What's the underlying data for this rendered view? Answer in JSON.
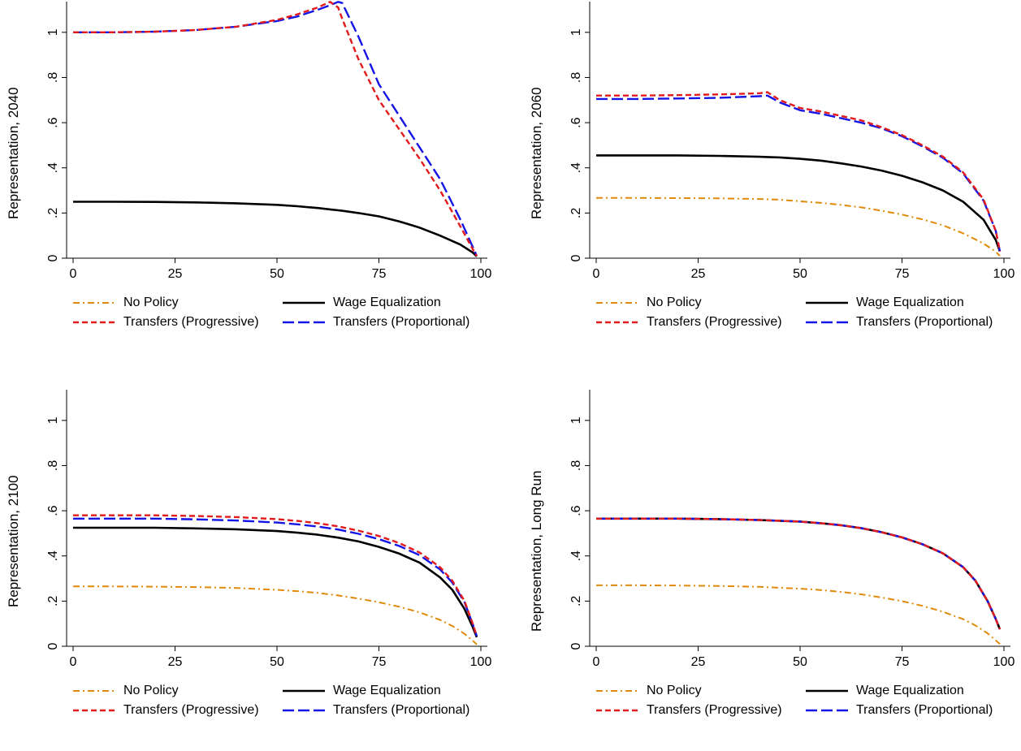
{
  "legend": [
    {
      "name": "No Policy",
      "color": "#E08A0B",
      "dash": "dashdot"
    },
    {
      "name": "Wage Equalization",
      "color": "#000000",
      "dash": "solid"
    },
    {
      "name": "Transfers (Progressive)",
      "color": "#E31A1C",
      "dash": "shortdash"
    },
    {
      "name": "Transfers (Proportional)",
      "color": "#1414E6",
      "dash": "longdash"
    }
  ],
  "chart_data": [
    {
      "type": "line",
      "ylabel": "Representation, 2040",
      "xlabel": "",
      "xlim": [
        0,
        100
      ],
      "ylim": [
        0,
        1.1
      ],
      "xticks": [
        "0",
        "25",
        "50",
        "75",
        "100"
      ],
      "yticks": [
        "0",
        ".2",
        ".4",
        ".6",
        ".8",
        "1"
      ],
      "x": [
        0,
        10,
        20,
        30,
        40,
        50,
        55,
        60,
        63,
        65,
        66,
        70,
        75,
        80,
        85,
        90,
        95,
        98,
        99
      ],
      "series": [
        {
          "name": "No Policy",
          "values": [
            0.25,
            0.25,
            0.249,
            0.247,
            0.243,
            0.236,
            0.23,
            0.222,
            0.216,
            0.212,
            0.21,
            0.2,
            0.185,
            0.163,
            0.135,
            0.1,
            0.06,
            0.025,
            0.008
          ]
        },
        {
          "name": "Wage Equalization",
          "values": [
            0.25,
            0.25,
            0.249,
            0.247,
            0.243,
            0.236,
            0.23,
            0.222,
            0.216,
            0.212,
            0.21,
            0.2,
            0.185,
            0.163,
            0.135,
            0.1,
            0.06,
            0.025,
            0.008
          ]
        },
        {
          "name": "Transfers (Progressive)",
          "values": [
            1.0,
            1.0,
            1.003,
            1.01,
            1.025,
            1.055,
            1.08,
            1.11,
            1.135,
            1.11,
            1.06,
            0.88,
            0.7,
            0.57,
            0.44,
            0.3,
            0.14,
            0.04,
            0.01
          ]
        },
        {
          "name": "Transfers (Proportional)",
          "values": [
            1.0,
            1.0,
            1.003,
            1.01,
            1.025,
            1.05,
            1.07,
            1.1,
            1.12,
            1.135,
            1.13,
            0.98,
            0.77,
            0.63,
            0.49,
            0.35,
            0.17,
            0.05,
            0.01
          ]
        }
      ]
    },
    {
      "type": "line",
      "ylabel": "Representation, 2060",
      "xlabel": "",
      "xlim": [
        0,
        100
      ],
      "ylim": [
        0,
        1.1
      ],
      "xticks": [
        "0",
        "25",
        "50",
        "75",
        "100"
      ],
      "yticks": [
        "0",
        ".2",
        ".4",
        ".6",
        ".8",
        "1"
      ],
      "x": [
        0,
        10,
        20,
        30,
        40,
        42,
        45,
        50,
        55,
        60,
        65,
        70,
        75,
        80,
        85,
        90,
        95,
        98,
        99
      ],
      "series": [
        {
          "name": "No Policy",
          "values": [
            0.267,
            0.267,
            0.266,
            0.265,
            0.262,
            0.261,
            0.259,
            0.252,
            0.245,
            0.236,
            0.225,
            0.21,
            0.193,
            0.172,
            0.146,
            0.11,
            0.065,
            0.028,
            0.01
          ]
        },
        {
          "name": "Wage Equalization",
          "values": [
            0.455,
            0.455,
            0.455,
            0.453,
            0.449,
            0.448,
            0.446,
            0.44,
            0.432,
            0.42,
            0.406,
            0.388,
            0.365,
            0.336,
            0.3,
            0.25,
            0.17,
            0.08,
            0.03
          ]
        },
        {
          "name": "Transfers (Progressive)",
          "values": [
            0.72,
            0.72,
            0.722,
            0.725,
            0.73,
            0.735,
            0.7,
            0.665,
            0.65,
            0.63,
            0.61,
            0.58,
            0.545,
            0.5,
            0.45,
            0.38,
            0.26,
            0.12,
            0.03
          ]
        },
        {
          "name": "Transfers (Proportional)",
          "values": [
            0.705,
            0.705,
            0.707,
            0.71,
            0.717,
            0.72,
            0.69,
            0.655,
            0.64,
            0.62,
            0.6,
            0.575,
            0.54,
            0.495,
            0.445,
            0.375,
            0.255,
            0.12,
            0.03
          ]
        }
      ]
    },
    {
      "type": "line",
      "ylabel": "Representation, 2100",
      "xlabel": "",
      "xlim": [
        0,
        100
      ],
      "ylim": [
        0,
        1.1
      ],
      "xticks": [
        "0",
        "25",
        "50",
        "75",
        "100"
      ],
      "yticks": [
        "0",
        ".2",
        ".4",
        ".6",
        ".8",
        "1"
      ],
      "x": [
        0,
        10,
        20,
        30,
        40,
        50,
        55,
        60,
        65,
        70,
        75,
        80,
        85,
        90,
        93,
        96,
        98,
        99
      ],
      "series": [
        {
          "name": "No Policy",
          "values": [
            0.265,
            0.265,
            0.264,
            0.262,
            0.258,
            0.25,
            0.244,
            0.236,
            0.225,
            0.211,
            0.195,
            0.175,
            0.15,
            0.117,
            0.09,
            0.055,
            0.025,
            0.008
          ]
        },
        {
          "name": "Wage Equalization",
          "values": [
            0.525,
            0.525,
            0.525,
            0.522,
            0.518,
            0.51,
            0.503,
            0.494,
            0.481,
            0.464,
            0.44,
            0.41,
            0.37,
            0.305,
            0.25,
            0.165,
            0.085,
            0.04
          ]
        },
        {
          "name": "Transfers (Progressive)",
          "values": [
            0.58,
            0.58,
            0.58,
            0.577,
            0.572,
            0.563,
            0.555,
            0.545,
            0.531,
            0.512,
            0.488,
            0.457,
            0.415,
            0.35,
            0.29,
            0.2,
            0.1,
            0.045
          ]
        },
        {
          "name": "Transfers (Proportional)",
          "values": [
            0.565,
            0.565,
            0.565,
            0.562,
            0.557,
            0.548,
            0.54,
            0.53,
            0.517,
            0.498,
            0.474,
            0.444,
            0.403,
            0.34,
            0.282,
            0.195,
            0.098,
            0.045
          ]
        }
      ]
    },
    {
      "type": "line",
      "ylabel": "Representation, Long Run",
      "xlabel": "",
      "xlim": [
        0,
        100
      ],
      "ylim": [
        0,
        1.1
      ],
      "xticks": [
        "0",
        "25",
        "50",
        "75",
        "100"
      ],
      "yticks": [
        "0",
        ".2",
        ".4",
        ".6",
        ".8",
        "1"
      ],
      "x": [
        0,
        10,
        20,
        30,
        40,
        50,
        55,
        60,
        65,
        70,
        75,
        80,
        85,
        90,
        93,
        96,
        98,
        99
      ],
      "series": [
        {
          "name": "No Policy",
          "values": [
            0.27,
            0.27,
            0.269,
            0.267,
            0.263,
            0.255,
            0.249,
            0.241,
            0.23,
            0.216,
            0.2,
            0.179,
            0.153,
            0.12,
            0.092,
            0.057,
            0.026,
            0.01
          ]
        },
        {
          "name": "Wage Equalization",
          "values": [
            0.565,
            0.565,
            0.565,
            0.563,
            0.559,
            0.552,
            0.545,
            0.536,
            0.523,
            0.505,
            0.482,
            0.452,
            0.412,
            0.35,
            0.29,
            0.2,
            0.12,
            0.075
          ]
        },
        {
          "name": "Transfers (Progressive)",
          "values": [
            0.565,
            0.565,
            0.565,
            0.563,
            0.559,
            0.552,
            0.545,
            0.536,
            0.523,
            0.505,
            0.482,
            0.452,
            0.412,
            0.35,
            0.29,
            0.2,
            0.12,
            0.075
          ]
        },
        {
          "name": "Transfers (Proportional)",
          "values": [
            0.565,
            0.565,
            0.565,
            0.563,
            0.559,
            0.552,
            0.545,
            0.536,
            0.523,
            0.505,
            0.482,
            0.452,
            0.412,
            0.35,
            0.29,
            0.2,
            0.12,
            0.075
          ]
        }
      ]
    }
  ]
}
